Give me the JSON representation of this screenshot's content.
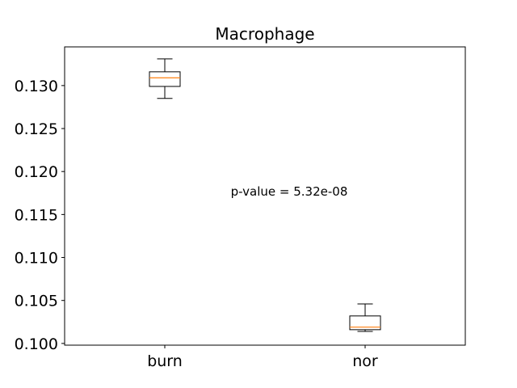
{
  "chart_data": {
    "type": "box",
    "title": "Macrophage",
    "xlabel": "",
    "ylabel": "",
    "categories": [
      "burn",
      "nor"
    ],
    "boxes": [
      {
        "category": "burn",
        "whisker_low": 0.1285,
        "q1": 0.1299,
        "median": 0.1309,
        "q3": 0.1316,
        "whisker_high": 0.1331
      },
      {
        "category": "nor",
        "whisker_low": 0.1014,
        "q1": 0.1016,
        "median": 0.1019,
        "q3": 0.1032,
        "whisker_high": 0.1046
      }
    ],
    "ylim": [
      0.0998,
      0.1345
    ],
    "yticks": [
      0.1,
      0.105,
      0.11,
      0.115,
      0.12,
      0.125,
      0.13
    ],
    "ytick_labels": [
      "0.100",
      "0.105",
      "0.110",
      "0.115",
      "0.120",
      "0.125",
      "0.130"
    ],
    "annotation": "p-value = 5.32e-08",
    "grid": false,
    "colors": {
      "box": "#000000",
      "median": "#ff7f0e",
      "axes": "#000000"
    }
  }
}
